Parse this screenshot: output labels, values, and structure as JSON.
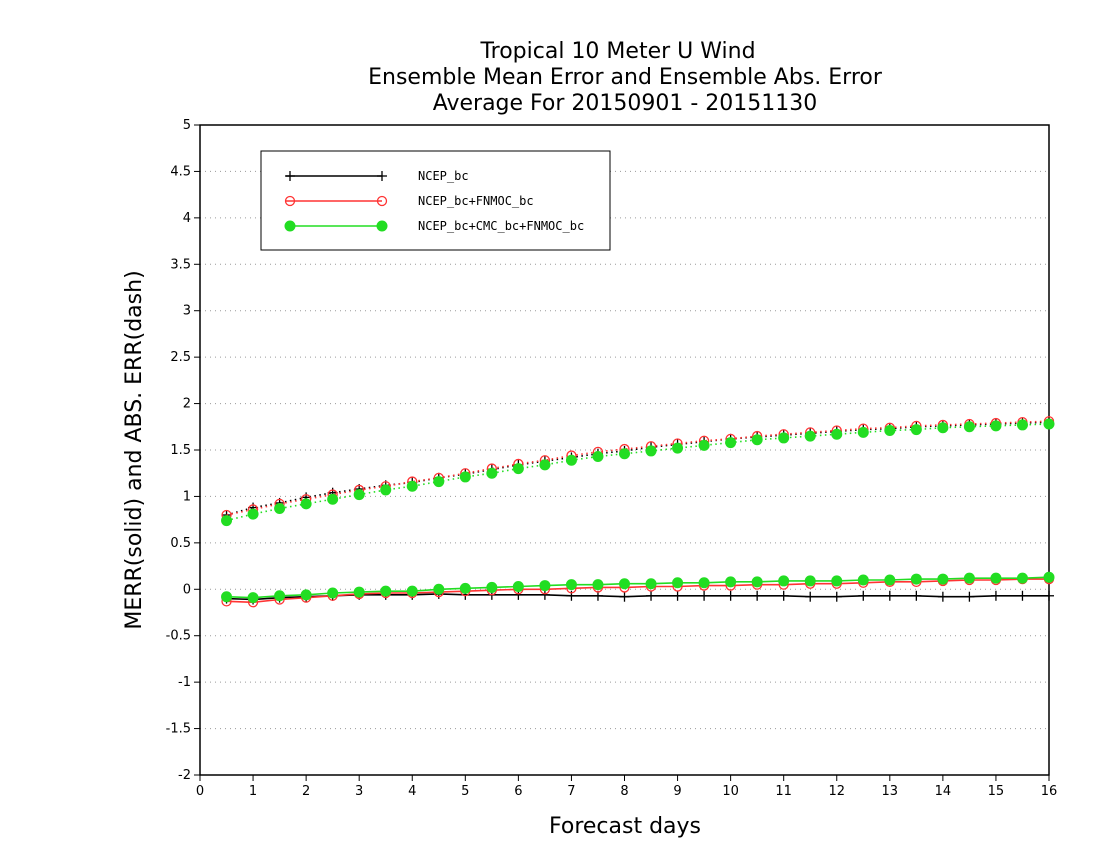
{
  "chart_data": {
    "type": "line",
    "title": [
      "Tropical 10 Meter U Wind",
      "Ensemble Mean Error and Ensemble Abs. Error",
      "Average For 20150901 - 20151130"
    ],
    "xlabel": "Forecast days",
    "ylabel": "MERR(solid) and ABS. ERR(dash)",
    "xlim": [
      0,
      16
    ],
    "ylim": [
      -2,
      5
    ],
    "xticks": [
      0,
      1,
      2,
      3,
      4,
      5,
      6,
      7,
      8,
      9,
      10,
      11,
      12,
      13,
      14,
      15,
      16
    ],
    "xtick_labels": [
      "0",
      "1",
      "2",
      "3",
      "4",
      "5",
      "6",
      "7",
      "8",
      "9",
      "10",
      "11",
      "12",
      "13",
      "14",
      "15",
      "16"
    ],
    "yticks": [
      -2,
      -1.5,
      -1,
      -0.5,
      0,
      0.5,
      1,
      1.5,
      2,
      2.5,
      3,
      3.5,
      4,
      4.5,
      5
    ],
    "ytick_labels": [
      "-2",
      "-1.5",
      "-1",
      "-0.5",
      "0",
      "0.5",
      "1",
      "1.5",
      "2",
      "2.5",
      "3",
      "3.5",
      "4",
      "4.5",
      "5"
    ],
    "grid": "horizontal dotted",
    "legend": "top-left",
    "x": [
      0.5,
      1.0,
      1.5,
      2.0,
      2.5,
      3.0,
      3.5,
      4.0,
      4.5,
      5.0,
      5.5,
      6.0,
      6.5,
      7.0,
      7.5,
      8.0,
      8.5,
      9.0,
      9.5,
      10.0,
      10.5,
      11.0,
      11.5,
      12.0,
      12.5,
      13.0,
      13.5,
      14.0,
      14.5,
      15.0,
      15.5,
      16.0
    ],
    "series": [
      {
        "name": "NCEP_bc",
        "color": "#000000",
        "marker": "plus",
        "merr": [
          -0.1,
          -0.11,
          -0.09,
          -0.08,
          -0.07,
          -0.06,
          -0.06,
          -0.06,
          -0.05,
          -0.06,
          -0.06,
          -0.06,
          -0.06,
          -0.07,
          -0.07,
          -0.08,
          -0.07,
          -0.07,
          -0.07,
          -0.07,
          -0.07,
          -0.07,
          -0.08,
          -0.08,
          -0.07,
          -0.07,
          -0.07,
          -0.08,
          -0.08,
          -0.07,
          -0.07,
          -0.07
        ],
        "abs_err": [
          0.8,
          0.88,
          0.93,
          0.99,
          1.04,
          1.08,
          1.12,
          1.15,
          1.2,
          1.24,
          1.29,
          1.34,
          1.38,
          1.42,
          1.46,
          1.49,
          1.53,
          1.56,
          1.59,
          1.62,
          1.64,
          1.66,
          1.68,
          1.7,
          1.72,
          1.73,
          1.75,
          1.76,
          1.77,
          1.78,
          1.79,
          1.8
        ]
      },
      {
        "name": "NCEP_bc+FNMOC_bc",
        "color": "#ff3333",
        "marker": "open-circle",
        "merr": [
          -0.13,
          -0.14,
          -0.11,
          -0.09,
          -0.07,
          -0.05,
          -0.04,
          -0.04,
          -0.03,
          -0.02,
          -0.01,
          0.0,
          0.0,
          0.01,
          0.02,
          0.02,
          0.03,
          0.03,
          0.04,
          0.04,
          0.05,
          0.05,
          0.06,
          0.06,
          0.07,
          0.08,
          0.08,
          0.09,
          0.1,
          0.1,
          0.11,
          0.11
        ],
        "abs_err": [
          0.8,
          0.86,
          0.92,
          0.97,
          1.02,
          1.07,
          1.11,
          1.16,
          1.2,
          1.25,
          1.3,
          1.35,
          1.39,
          1.44,
          1.48,
          1.51,
          1.54,
          1.57,
          1.6,
          1.62,
          1.65,
          1.67,
          1.69,
          1.71,
          1.73,
          1.74,
          1.76,
          1.77,
          1.78,
          1.79,
          1.8,
          1.81
        ]
      },
      {
        "name": "NCEP_bc+CMC_bc+FNMOC_bc",
        "color": "#22dd22",
        "marker": "filled-circle",
        "merr": [
          -0.08,
          -0.09,
          -0.07,
          -0.06,
          -0.04,
          -0.03,
          -0.02,
          -0.02,
          0.0,
          0.01,
          0.02,
          0.03,
          0.04,
          0.05,
          0.05,
          0.06,
          0.06,
          0.07,
          0.07,
          0.08,
          0.08,
          0.09,
          0.09,
          0.09,
          0.1,
          0.1,
          0.11,
          0.11,
          0.12,
          0.12,
          0.12,
          0.13
        ],
        "abs_err": [
          0.74,
          0.81,
          0.87,
          0.92,
          0.97,
          1.02,
          1.07,
          1.11,
          1.16,
          1.21,
          1.25,
          1.3,
          1.34,
          1.39,
          1.43,
          1.46,
          1.49,
          1.52,
          1.55,
          1.58,
          1.61,
          1.63,
          1.65,
          1.67,
          1.69,
          1.71,
          1.72,
          1.74,
          1.75,
          1.76,
          1.77,
          1.78
        ]
      }
    ]
  }
}
